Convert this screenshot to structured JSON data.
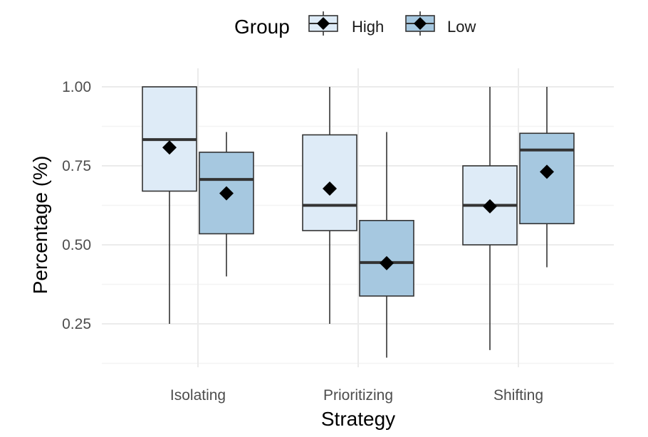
{
  "chart_data": {
    "type": "boxplot",
    "xlabel": "Strategy",
    "ylabel": "Percentage (%)",
    "ylim": [
      0.13,
      1.04
    ],
    "yticks": [
      0.25,
      0.5,
      0.75,
      1.0
    ],
    "ytick_labels": [
      "0.25",
      "0.50",
      "0.75",
      "1.00"
    ],
    "categories": [
      "Isolating",
      "Prioritizing",
      "Shifting"
    ],
    "grid": true,
    "legend": {
      "title": "Group",
      "placement": "top",
      "entries": [
        "High",
        "Low"
      ]
    },
    "series": [
      {
        "name": "High",
        "color": "#deebf7",
        "boxes": [
          {
            "category": "Isolating",
            "min": 0.25,
            "q1": 0.67,
            "median": 0.833,
            "q3": 1.0,
            "max": 1.0,
            "mean": 0.808
          },
          {
            "category": "Prioritizing",
            "min": 0.25,
            "q1": 0.545,
            "median": 0.625,
            "q3": 0.848,
            "max": 1.0,
            "mean": 0.678
          },
          {
            "category": "Shifting",
            "min": 0.167,
            "q1": 0.5,
            "median": 0.625,
            "q3": 0.75,
            "max": 1.0,
            "mean": 0.622
          }
        ]
      },
      {
        "name": "Low",
        "color": "#a6c8e0",
        "boxes": [
          {
            "category": "Isolating",
            "min": 0.4,
            "q1": 0.535,
            "median": 0.707,
            "q3": 0.793,
            "max": 0.857,
            "mean": 0.663
          },
          {
            "category": "Prioritizing",
            "min": 0.143,
            "q1": 0.338,
            "median": 0.444,
            "q3": 0.577,
            "max": 0.857,
            "mean": 0.442
          },
          {
            "category": "Shifting",
            "min": 0.429,
            "q1": 0.567,
            "median": 0.8,
            "q3": 0.853,
            "max": 1.0,
            "mean": 0.731
          }
        ]
      }
    ]
  }
}
